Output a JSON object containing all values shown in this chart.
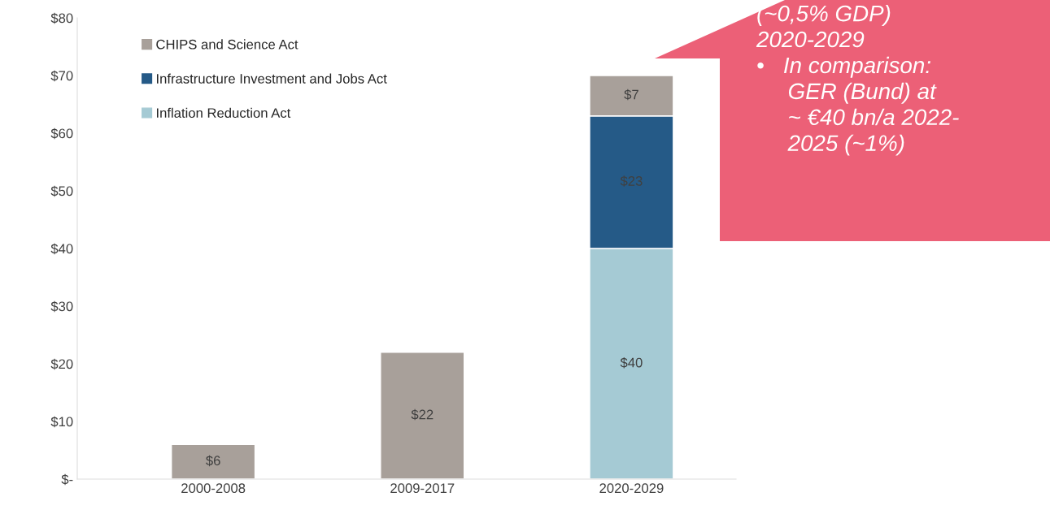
{
  "chart_data": {
    "type": "bar",
    "stacked": true,
    "categories": [
      "2000-2008",
      "2009-2017",
      "2020-2029"
    ],
    "series": [
      {
        "name": "Inflation Reduction Act",
        "color": "#a5cad4",
        "values": [
          null,
          null,
          40
        ],
        "value_labels": [
          null,
          null,
          "$40"
        ]
      },
      {
        "name": "Infrastructure Investment and Jobs Act",
        "color": "#255a87",
        "values": [
          null,
          null,
          23
        ],
        "value_labels": [
          null,
          null,
          "$23"
        ]
      },
      {
        "name": "CHIPS and Science Act",
        "color": "#a8a09a",
        "values": [
          6,
          22,
          7
        ],
        "value_labels": [
          "$6",
          "$22",
          "$7"
        ]
      }
    ],
    "ylim": [
      0,
      80
    ],
    "yticks": [
      {
        "value": 0,
        "label": "$-"
      },
      {
        "value": 10,
        "label": "$10"
      },
      {
        "value": 20,
        "label": "$20"
      },
      {
        "value": 30,
        "label": "$30"
      },
      {
        "value": 40,
        "label": "$40"
      },
      {
        "value": 50,
        "label": "$50"
      },
      {
        "value": 60,
        "label": "$60"
      },
      {
        "value": 70,
        "label": "$70"
      },
      {
        "value": 80,
        "label": "$80"
      }
    ],
    "legend": "top left",
    "grid": false,
    "annotations": [
      "(~0,5% GDP)\n2020-2029\n•   In comparison:\n     GER (Bund) at\n     ~ €40 bn/a 2022-\n     2025 (~1%)"
    ]
  }
}
